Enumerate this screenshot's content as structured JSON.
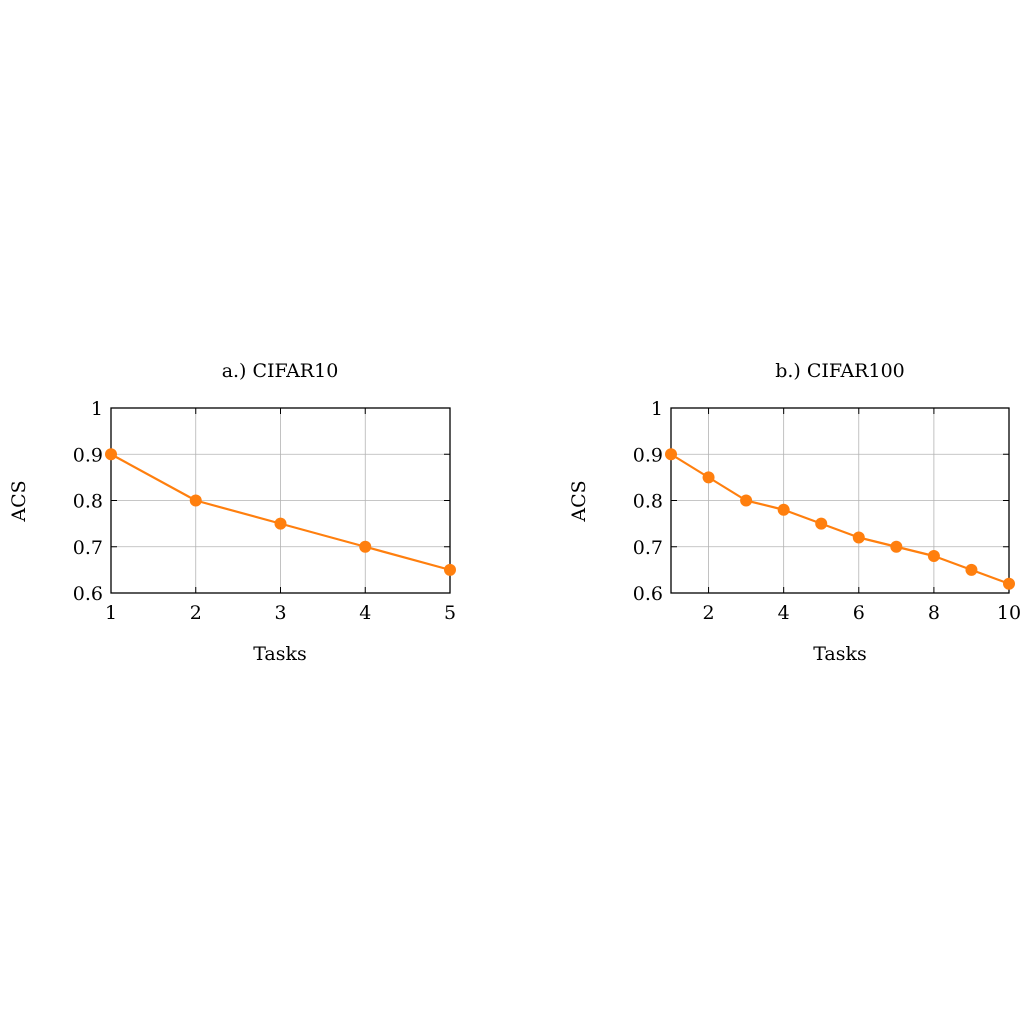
{
  "chart_data": [
    {
      "type": "line",
      "title": "a.) CIFAR10",
      "xlabel": "Tasks",
      "ylabel": "ACS",
      "xlim": [
        1,
        5
      ],
      "ylim": [
        0.6,
        1
      ],
      "xticks": [
        1,
        2,
        3,
        4,
        5
      ],
      "xtick_labels": [
        "1",
        "2",
        "3",
        "4",
        "5"
      ],
      "yticks": [
        0.6,
        0.7,
        0.8,
        0.9,
        1
      ],
      "ytick_labels": [
        "0.6",
        "0.7",
        "0.8",
        "0.9",
        "1"
      ],
      "grid": true,
      "series": [
        {
          "color": "#ff7f0e",
          "x": [
            1,
            2,
            3,
            4,
            5
          ],
          "y": [
            0.9,
            0.8,
            0.75,
            0.7,
            0.65
          ]
        }
      ]
    },
    {
      "type": "line",
      "title": "b.) CIFAR100",
      "xlabel": "Tasks",
      "ylabel": "ACS",
      "xlim": [
        1,
        10
      ],
      "ylim": [
        0.6,
        1
      ],
      "xticks": [
        2,
        4,
        6,
        8,
        10
      ],
      "xtick_labels": [
        "2",
        "4",
        "6",
        "8",
        "10"
      ],
      "yticks": [
        0.6,
        0.7,
        0.8,
        0.9,
        1
      ],
      "ytick_labels": [
        "0.6",
        "0.7",
        "0.8",
        "0.9",
        "1"
      ],
      "grid": true,
      "series": [
        {
          "color": "#ff7f0e",
          "x": [
            1,
            2,
            3,
            4,
            5,
            6,
            7,
            8,
            9,
            10
          ],
          "y": [
            0.9,
            0.85,
            0.8,
            0.78,
            0.75,
            0.72,
            0.7,
            0.68,
            0.65,
            0.62
          ]
        }
      ]
    }
  ]
}
